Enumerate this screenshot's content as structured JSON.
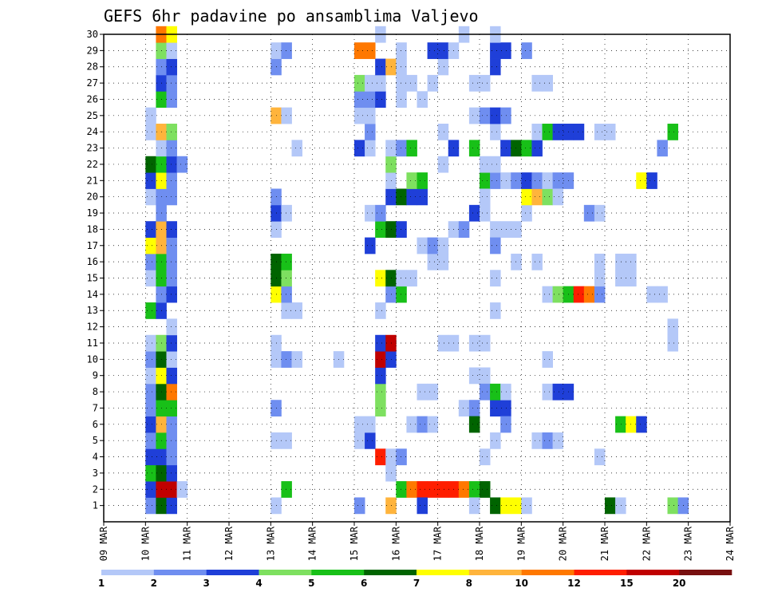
{
  "chart_data": {
    "type": "heatmap",
    "title": "GEFS 6hr padavine po ansamblima Valjevo",
    "xlabel": "",
    "ylabel": "",
    "x_ticks": [
      "09 MAR",
      "10 MAR",
      "11 MAR",
      "12 MAR",
      "13 MAR",
      "14 MAR",
      "15 MAR",
      "16 MAR",
      "17 MAR",
      "18 MAR",
      "19 MAR",
      "20 MAR",
      "21 MAR",
      "22 MAR",
      "23 MAR",
      "24 MAR"
    ],
    "y_ticks": [
      1,
      2,
      3,
      4,
      5,
      6,
      7,
      8,
      9,
      10,
      11,
      12,
      13,
      14,
      15,
      16,
      17,
      18,
      19,
      20,
      21,
      22,
      23,
      24,
      25,
      26,
      27,
      28,
      29,
      30
    ],
    "xlim_days": [
      0,
      15
    ],
    "ylim": [
      0,
      30
    ],
    "grid": true,
    "colorbar": {
      "levels": [
        "1",
        "2",
        "3",
        "4",
        "5",
        "6",
        "7",
        "8",
        "10",
        "12",
        "15",
        "20"
      ],
      "colors": [
        "#b4c8f8",
        "#6f8ef0",
        "#1f3fd8",
        "#7ee060",
        "#18c018",
        "#006400",
        "#ffff00",
        "#ffb43c",
        "#ff7800",
        "#ff1e00",
        "#c00000",
        "#781010"
      ]
    },
    "cell_width_days": 0.25,
    "series_note": "cells: [day_offset, member, color_index]",
    "cells": [
      [
        1.0,
        1,
        1
      ],
      [
        1.25,
        1,
        5
      ],
      [
        1.5,
        1,
        2
      ],
      [
        1.0,
        2,
        2
      ],
      [
        1.25,
        2,
        10
      ],
      [
        1.5,
        2,
        10
      ],
      [
        1.75,
        2,
        0
      ],
      [
        1.0,
        3,
        4
      ],
      [
        1.25,
        3,
        5
      ],
      [
        1.5,
        3,
        2
      ],
      [
        1.0,
        4,
        2
      ],
      [
        1.25,
        4,
        2
      ],
      [
        1.5,
        4,
        1
      ],
      [
        1.0,
        5,
        1
      ],
      [
        1.25,
        5,
        4
      ],
      [
        1.5,
        5,
        1
      ],
      [
        1.0,
        6,
        2
      ],
      [
        1.25,
        6,
        7
      ],
      [
        1.5,
        6,
        1
      ],
      [
        1.0,
        7,
        1
      ],
      [
        1.25,
        7,
        4
      ],
      [
        1.5,
        7,
        4
      ],
      [
        1.0,
        8,
        1
      ],
      [
        1.25,
        8,
        5
      ],
      [
        1.5,
        8,
        8
      ],
      [
        1.0,
        9,
        0
      ],
      [
        1.25,
        9,
        6
      ],
      [
        1.5,
        9,
        2
      ],
      [
        1.0,
        10,
        1
      ],
      [
        1.25,
        10,
        5
      ],
      [
        1.5,
        10,
        0
      ],
      [
        1.0,
        11,
        0
      ],
      [
        1.25,
        11,
        3
      ],
      [
        1.5,
        11,
        2
      ],
      [
        1.5,
        12,
        0
      ],
      [
        1.0,
        13,
        4
      ],
      [
        1.25,
        13,
        2
      ],
      [
        1.25,
        14,
        1
      ],
      [
        1.5,
        14,
        2
      ],
      [
        1.0,
        15,
        0
      ],
      [
        1.25,
        15,
        4
      ],
      [
        1.5,
        15,
        1
      ],
      [
        1.0,
        16,
        1
      ],
      [
        1.25,
        16,
        4
      ],
      [
        1.5,
        16,
        1
      ],
      [
        1.0,
        17,
        6
      ],
      [
        1.25,
        17,
        7
      ],
      [
        1.5,
        17,
        1
      ],
      [
        1.0,
        18,
        2
      ],
      [
        1.25,
        18,
        7
      ],
      [
        1.5,
        18,
        2
      ],
      [
        1.25,
        19,
        1
      ],
      [
        1.0,
        20,
        0
      ],
      [
        1.25,
        20,
        1
      ],
      [
        1.5,
        20,
        1
      ],
      [
        1.0,
        21,
        2
      ],
      [
        1.25,
        21,
        6
      ],
      [
        1.5,
        21,
        1
      ],
      [
        1.0,
        22,
        5
      ],
      [
        1.25,
        22,
        4
      ],
      [
        1.5,
        22,
        2
      ],
      [
        1.75,
        22,
        1
      ],
      [
        1.25,
        23,
        0
      ],
      [
        1.5,
        23,
        1
      ],
      [
        1.0,
        24,
        0
      ],
      [
        1.25,
        24,
        7
      ],
      [
        1.5,
        24,
        3
      ],
      [
        1.0,
        25,
        0
      ],
      [
        1.25,
        26,
        4
      ],
      [
        1.5,
        26,
        1
      ],
      [
        1.25,
        27,
        2
      ],
      [
        1.5,
        27,
        1
      ],
      [
        1.25,
        28,
        1
      ],
      [
        1.5,
        28,
        2
      ],
      [
        1.25,
        29,
        3
      ],
      [
        1.5,
        29,
        0
      ],
      [
        1.25,
        30,
        8
      ],
      [
        1.5,
        30,
        6
      ],
      [
        4.0,
        1,
        0
      ],
      [
        4.25,
        2,
        4
      ],
      [
        4.0,
        5,
        0
      ],
      [
        4.25,
        5,
        0
      ],
      [
        4.0,
        7,
        1
      ],
      [
        4.0,
        10,
        0
      ],
      [
        4.25,
        10,
        1
      ],
      [
        4.5,
        10,
        0
      ],
      [
        4.0,
        11,
        0
      ],
      [
        4.25,
        13,
        0
      ],
      [
        4.5,
        13,
        0
      ],
      [
        4.0,
        14,
        6
      ],
      [
        4.25,
        14,
        1
      ],
      [
        4.0,
        15,
        5
      ],
      [
        4.25,
        15,
        3
      ],
      [
        4.0,
        16,
        5
      ],
      [
        4.25,
        16,
        4
      ],
      [
        4.0,
        18,
        0
      ],
      [
        4.0,
        19,
        2
      ],
      [
        4.25,
        19,
        0
      ],
      [
        4.0,
        20,
        1
      ],
      [
        4.5,
        23,
        0
      ],
      [
        4.0,
        25,
        7
      ],
      [
        4.25,
        25,
        0
      ],
      [
        4.0,
        28,
        1
      ],
      [
        4.0,
        29,
        0
      ],
      [
        4.25,
        29,
        1
      ],
      [
        5.5,
        10,
        0
      ],
      [
        6.0,
        1,
        1
      ],
      [
        6.0,
        5,
        0
      ],
      [
        6.25,
        5,
        2
      ],
      [
        6.0,
        6,
        0
      ],
      [
        6.25,
        6,
        0
      ],
      [
        6.5,
        7,
        3
      ],
      [
        6.5,
        8,
        3
      ],
      [
        6.5,
        9,
        2
      ],
      [
        6.5,
        10,
        10
      ],
      [
        6.75,
        10,
        2
      ],
      [
        6.5,
        11,
        2
      ],
      [
        6.75,
        11,
        10
      ],
      [
        6.5,
        4,
        9
      ],
      [
        6.75,
        4,
        0
      ],
      [
        7.0,
        4,
        1
      ],
      [
        6.75,
        3,
        0
      ],
      [
        6.75,
        1,
        7
      ],
      [
        6.5,
        13,
        0
      ],
      [
        6.75,
        14,
        1
      ],
      [
        7.0,
        14,
        4
      ],
      [
        6.5,
        15,
        6
      ],
      [
        6.75,
        15,
        5
      ],
      [
        7.0,
        15,
        0
      ],
      [
        7.25,
        15,
        0
      ],
      [
        6.25,
        17,
        2
      ],
      [
        6.5,
        18,
        4
      ],
      [
        6.75,
        18,
        5
      ],
      [
        7.0,
        18,
        2
      ],
      [
        6.25,
        19,
        0
      ],
      [
        6.5,
        19,
        1
      ],
      [
        6.75,
        20,
        2
      ],
      [
        7.0,
        20,
        5
      ],
      [
        7.25,
        20,
        2
      ],
      [
        7.5,
        20,
        2
      ],
      [
        6.75,
        21,
        0
      ],
      [
        7.25,
        21,
        3
      ],
      [
        7.5,
        21,
        4
      ],
      [
        6.75,
        22,
        3
      ],
      [
        6.0,
        23,
        2
      ],
      [
        6.25,
        23,
        0
      ],
      [
        6.75,
        23,
        0
      ],
      [
        7.0,
        23,
        1
      ],
      [
        7.25,
        23,
        4
      ],
      [
        6.25,
        24,
        1
      ],
      [
        6.0,
        25,
        0
      ],
      [
        6.25,
        25,
        0
      ],
      [
        6.0,
        26,
        1
      ],
      [
        6.25,
        26,
        1
      ],
      [
        6.5,
        26,
        2
      ],
      [
        7.0,
        26,
        0
      ],
      [
        6.0,
        27,
        3
      ],
      [
        6.25,
        27,
        0
      ],
      [
        6.5,
        27,
        0
      ],
      [
        7.0,
        27,
        0
      ],
      [
        7.25,
        27,
        0
      ],
      [
        6.5,
        28,
        2
      ],
      [
        6.75,
        28,
        7
      ],
      [
        7.0,
        28,
        0
      ],
      [
        6.0,
        29,
        8
      ],
      [
        6.25,
        29,
        8
      ],
      [
        7.0,
        29,
        0
      ],
      [
        6.5,
        30,
        0
      ],
      [
        7.0,
        2,
        4
      ],
      [
        7.25,
        2,
        8
      ],
      [
        7.5,
        2,
        9
      ],
      [
        7.75,
        2,
        9
      ],
      [
        8.0,
        2,
        9
      ],
      [
        8.25,
        2,
        9
      ],
      [
        8.5,
        2,
        8
      ],
      [
        8.75,
        2,
        4
      ],
      [
        9.0,
        2,
        5
      ],
      [
        7.5,
        1,
        2
      ],
      [
        7.25,
        6,
        0
      ],
      [
        7.5,
        6,
        1
      ],
      [
        7.75,
        6,
        0
      ],
      [
        7.5,
        8,
        0
      ],
      [
        7.75,
        8,
        0
      ],
      [
        7.75,
        16,
        0
      ],
      [
        8.0,
        16,
        0
      ],
      [
        7.5,
        17,
        0
      ],
      [
        7.75,
        17,
        1
      ],
      [
        8.0,
        17,
        0
      ],
      [
        8.25,
        18,
        0
      ],
      [
        8.5,
        18,
        1
      ],
      [
        8.0,
        22,
        0
      ],
      [
        8.25,
        23,
        2
      ],
      [
        8.0,
        24,
        0
      ],
      [
        7.5,
        26,
        0
      ],
      [
        7.75,
        27,
        0
      ],
      [
        8.0,
        28,
        0
      ],
      [
        7.75,
        29,
        2
      ],
      [
        8.0,
        29,
        2
      ],
      [
        8.25,
        29,
        0
      ],
      [
        8.5,
        30,
        0
      ],
      [
        8.5,
        7,
        0
      ],
      [
        8.75,
        7,
        1
      ],
      [
        8.75,
        6,
        5
      ],
      [
        8.75,
        1,
        0
      ],
      [
        8.75,
        9,
        0
      ],
      [
        9.0,
        9,
        0
      ],
      [
        8.0,
        11,
        0
      ],
      [
        8.25,
        11,
        0
      ],
      [
        8.75,
        11,
        0
      ],
      [
        9.0,
        11,
        0
      ],
      [
        8.75,
        19,
        2
      ],
      [
        9.0,
        19,
        0
      ],
      [
        9.0,
        21,
        4
      ],
      [
        9.25,
        21,
        1
      ],
      [
        8.75,
        23,
        4
      ],
      [
        8.75,
        25,
        0
      ],
      [
        9.0,
        25,
        1
      ],
      [
        9.25,
        24,
        0
      ],
      [
        9.0,
        20,
        0
      ],
      [
        9.25,
        18,
        0
      ],
      [
        9.25,
        17,
        1
      ],
      [
        8.75,
        27,
        0
      ],
      [
        9.0,
        27,
        0
      ],
      [
        9.25,
        1,
        5
      ],
      [
        9.5,
        1,
        6
      ],
      [
        9.75,
        1,
        6
      ],
      [
        9.0,
        4,
        0
      ],
      [
        9.25,
        7,
        2
      ],
      [
        9.5,
        7,
        2
      ],
      [
        9.0,
        8,
        1
      ],
      [
        9.25,
        8,
        4
      ],
      [
        9.5,
        8,
        0
      ],
      [
        9.25,
        5,
        0
      ],
      [
        9.5,
        6,
        1
      ],
      [
        9.25,
        13,
        0
      ],
      [
        9.25,
        15,
        0
      ],
      [
        9.5,
        18,
        0
      ],
      [
        9.75,
        18,
        0
      ],
      [
        9.5,
        21,
        0
      ],
      [
        9.75,
        21,
        1
      ],
      [
        9.0,
        22,
        0
      ],
      [
        9.25,
        22,
        0
      ],
      [
        9.5,
        23,
        2
      ],
      [
        9.25,
        25,
        2
      ],
      [
        9.5,
        25,
        1
      ],
      [
        9.25,
        28,
        2
      ],
      [
        9.25,
        29,
        2
      ],
      [
        9.5,
        29,
        2
      ],
      [
        9.25,
        30,
        0
      ],
      [
        9.75,
        23,
        5
      ],
      [
        10.0,
        23,
        4
      ],
      [
        10.25,
        23,
        2
      ],
      [
        9.75,
        16,
        0
      ],
      [
        10.25,
        16,
        0
      ],
      [
        10.0,
        19,
        0
      ],
      [
        10.0,
        20,
        6
      ],
      [
        10.25,
        20,
        7
      ],
      [
        10.5,
        20,
        3
      ],
      [
        10.0,
        21,
        2
      ],
      [
        10.25,
        21,
        1
      ],
      [
        10.5,
        21,
        0
      ],
      [
        10.75,
        21,
        1
      ],
      [
        11.0,
        21,
        1
      ],
      [
        10.25,
        24,
        0
      ],
      [
        10.5,
        24,
        4
      ],
      [
        10.75,
        24,
        2
      ],
      [
        11.0,
        24,
        2
      ],
      [
        11.25,
        24,
        2
      ],
      [
        10.25,
        27,
        0
      ],
      [
        10.5,
        27,
        0
      ],
      [
        10.0,
        29,
        1
      ],
      [
        10.5,
        10,
        0
      ],
      [
        10.25,
        5,
        0
      ],
      [
        10.5,
        14,
        0
      ],
      [
        10.75,
        14,
        3
      ],
      [
        11.0,
        14,
        4
      ],
      [
        11.25,
        14,
        9
      ],
      [
        11.5,
        14,
        8
      ],
      [
        11.75,
        14,
        1
      ],
      [
        10.75,
        20,
        0
      ],
      [
        10.5,
        8,
        0
      ],
      [
        10.75,
        8,
        2
      ],
      [
        11.0,
        8,
        2
      ],
      [
        10.5,
        5,
        1
      ],
      [
        10.75,
        5,
        0
      ],
      [
        10.0,
        1,
        0
      ],
      [
        11.5,
        19,
        1
      ],
      [
        11.75,
        19,
        0
      ],
      [
        11.75,
        24,
        0
      ],
      [
        12.0,
        24,
        0
      ],
      [
        11.75,
        15,
        0
      ],
      [
        11.75,
        16,
        0
      ],
      [
        11.75,
        4,
        0
      ],
      [
        12.0,
        1,
        5
      ],
      [
        12.25,
        1,
        0
      ],
      [
        12.25,
        6,
        4
      ],
      [
        12.5,
        6,
        6
      ],
      [
        12.75,
        6,
        2
      ],
      [
        12.25,
        15,
        0
      ],
      [
        12.5,
        15,
        0
      ],
      [
        12.25,
        16,
        0
      ],
      [
        12.5,
        16,
        0
      ],
      [
        12.75,
        21,
        6
      ],
      [
        13.0,
        21,
        2
      ],
      [
        13.25,
        23,
        1
      ],
      [
        13.5,
        24,
        4
      ],
      [
        13.0,
        14,
        0
      ],
      [
        13.25,
        14,
        0
      ],
      [
        13.5,
        12,
        0
      ],
      [
        13.5,
        11,
        0
      ],
      [
        13.5,
        1,
        3
      ],
      [
        13.75,
        1,
        1
      ]
    ]
  }
}
